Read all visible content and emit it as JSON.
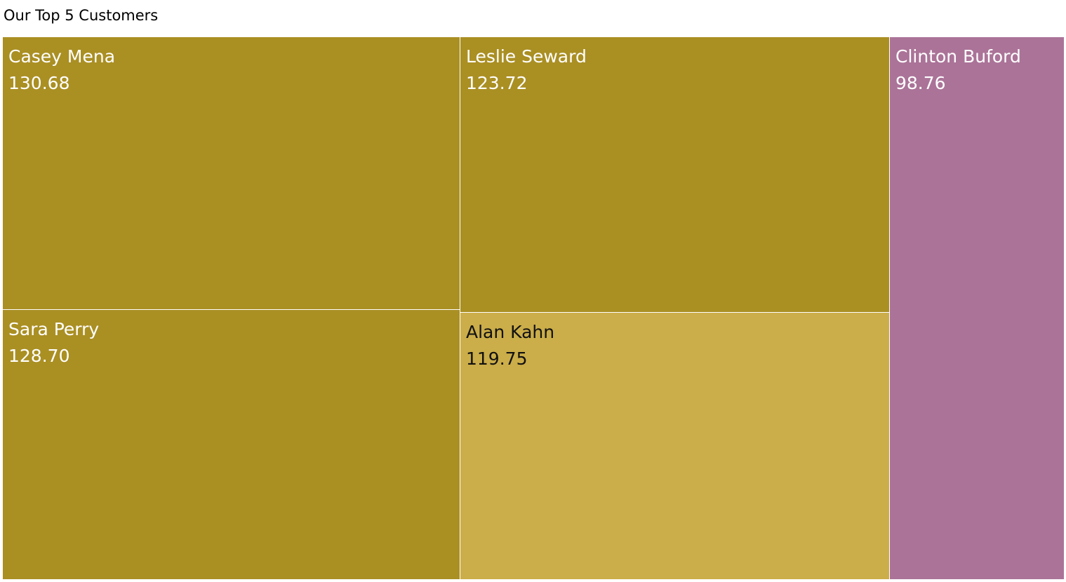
{
  "chart_data": {
    "type": "treemap",
    "title": "Our Top 5 Customers",
    "items": [
      {
        "name": "Casey Mena",
        "value": 130.68,
        "value_label": "130.68",
        "color": "#AA8F23",
        "text_color": "#ffffff"
      },
      {
        "name": "Sara Perry",
        "value": 128.7,
        "value_label": "128.70",
        "color": "#AA8F23",
        "text_color": "#ffffff"
      },
      {
        "name": "Leslie Seward",
        "value": 123.72,
        "value_label": "123.72",
        "color": "#AA8F23",
        "text_color": "#ffffff"
      },
      {
        "name": "Alan Kahn",
        "value": 119.75,
        "value_label": "119.75",
        "color": "#CBAD49",
        "text_color": "#111111"
      },
      {
        "name": "Clinton Buford",
        "value": 98.76,
        "value_label": "98.76",
        "color": "#AB7398",
        "text_color": "#ffffff"
      }
    ]
  }
}
